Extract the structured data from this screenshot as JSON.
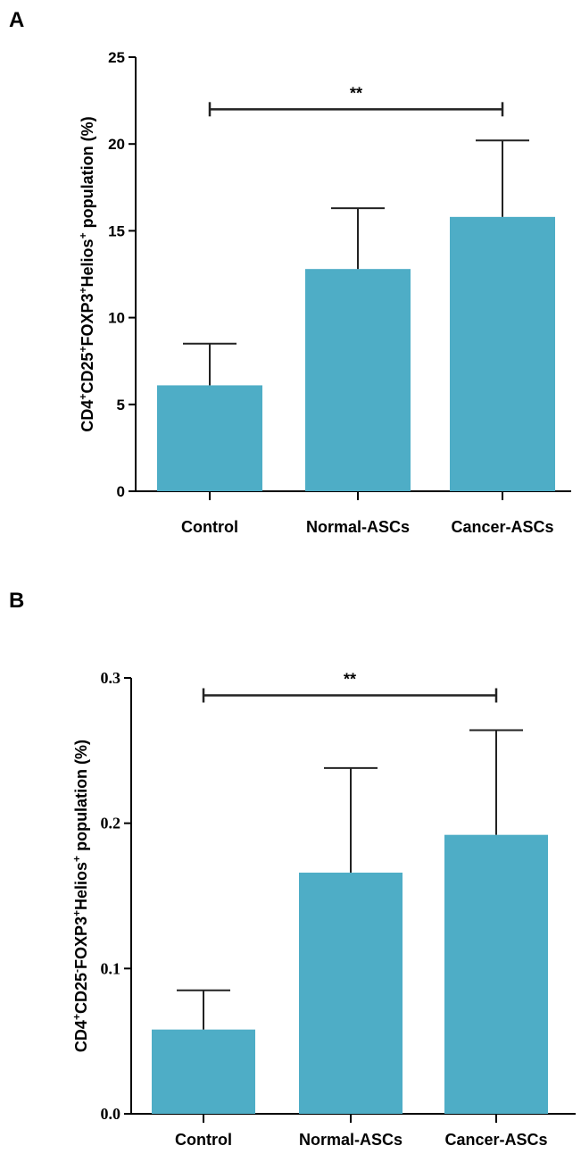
{
  "chart_data": [
    {
      "panel": "A",
      "type": "bar",
      "categories": [
        "Control",
        "Normal-ASCs",
        "Cancer-ASCs"
      ],
      "values": [
        6.1,
        12.8,
        15.8
      ],
      "errors": [
        2.4,
        3.5,
        4.4
      ],
      "ylim": [
        0,
        25
      ],
      "yticks": [
        "0",
        "5",
        "10",
        "15",
        "20",
        "25"
      ],
      "ytick_values": [
        0,
        5,
        10,
        15,
        20,
        25
      ],
      "ylabel_parts": [
        {
          "t": "CD4",
          "sup": false
        },
        {
          "t": "+",
          "sup": true
        },
        {
          "t": "CD25",
          "sup": false
        },
        {
          "t": "+",
          "sup": true
        },
        {
          "t": "FOXP3",
          "sup": false
        },
        {
          "t": "+",
          "sup": true
        },
        {
          "t": "Helios",
          "sup": false
        },
        {
          "t": "+",
          "sup": true
        },
        {
          "t": " population (%)",
          "sup": false
        }
      ],
      "significance": {
        "from": 0,
        "to": 2,
        "label": "**",
        "level": 22
      },
      "bar_color": "#4eadc6"
    },
    {
      "panel": "B",
      "type": "bar",
      "categories": [
        "Control",
        "Normal-ASCs",
        "Cancer-ASCs"
      ],
      "values": [
        0.058,
        0.166,
        0.192
      ],
      "errors": [
        0.027,
        0.072,
        0.072
      ],
      "ylim": [
        0,
        0.3
      ],
      "yticks": [
        "0.0",
        "0.1",
        "0.2",
        "0.3"
      ],
      "ytick_values": [
        0,
        0.1,
        0.2,
        0.3
      ],
      "ylabel_parts": [
        {
          "t": "CD4",
          "sup": false
        },
        {
          "t": "+",
          "sup": true
        },
        {
          "t": "CD25",
          "sup": false
        },
        {
          "t": "-",
          "sup": true
        },
        {
          "t": "FOXP3",
          "sup": false
        },
        {
          "t": "+",
          "sup": true
        },
        {
          "t": "Helios",
          "sup": false
        },
        {
          "t": "+",
          "sup": true
        },
        {
          "t": " population (%)",
          "sup": false
        }
      ],
      "significance": {
        "from": 0,
        "to": 2,
        "label": "**",
        "level": 0.288
      },
      "bar_color": "#4eadc6"
    }
  ]
}
